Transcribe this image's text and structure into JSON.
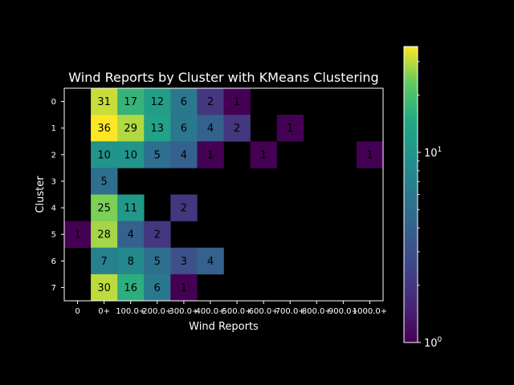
{
  "chart_data": {
    "type": "heatmap",
    "title": "Wind Reports by Cluster with KMeans Clustering",
    "xlabel": "Wind Reports",
    "ylabel": "Cluster",
    "x_categories": [
      "0",
      "0+",
      "100.0+",
      "200.0+",
      "300.0+",
      "400.0+",
      "500.0+",
      "600.0+",
      "700.0+",
      "800.0+",
      "900.0+",
      "1000.0+"
    ],
    "y_categories": [
      "0",
      "1",
      "2",
      "3",
      "4",
      "5",
      "6",
      "7"
    ],
    "values": [
      [
        null,
        31,
        17,
        12,
        6,
        2,
        1,
        null,
        null,
        null,
        null,
        null
      ],
      [
        null,
        36,
        29,
        13,
        6,
        4,
        2,
        null,
        1,
        null,
        null,
        null
      ],
      [
        null,
        10,
        10,
        5,
        4,
        1,
        null,
        1,
        null,
        null,
        null,
        1
      ],
      [
        null,
        5,
        null,
        null,
        null,
        null,
        null,
        null,
        null,
        null,
        null,
        null
      ],
      [
        null,
        25,
        11,
        null,
        2,
        null,
        null,
        null,
        null,
        null,
        null,
        null
      ],
      [
        1,
        28,
        4,
        2,
        null,
        null,
        null,
        null,
        null,
        null,
        null,
        null
      ],
      [
        null,
        7,
        8,
        5,
        3,
        4,
        null,
        null,
        null,
        null,
        null,
        null
      ],
      [
        null,
        30,
        16,
        6,
        1,
        null,
        null,
        null,
        null,
        null,
        null,
        null
      ]
    ],
    "colormap": "viridis",
    "color_scale": "log",
    "vmin": 1,
    "vmax": 36,
    "colorbar": {
      "ticks": [
        {
          "value": 1,
          "label": "10",
          "exp": "0"
        },
        {
          "value": 10,
          "label": "10",
          "exp": "1"
        }
      ]
    },
    "background_color": "#000000"
  }
}
